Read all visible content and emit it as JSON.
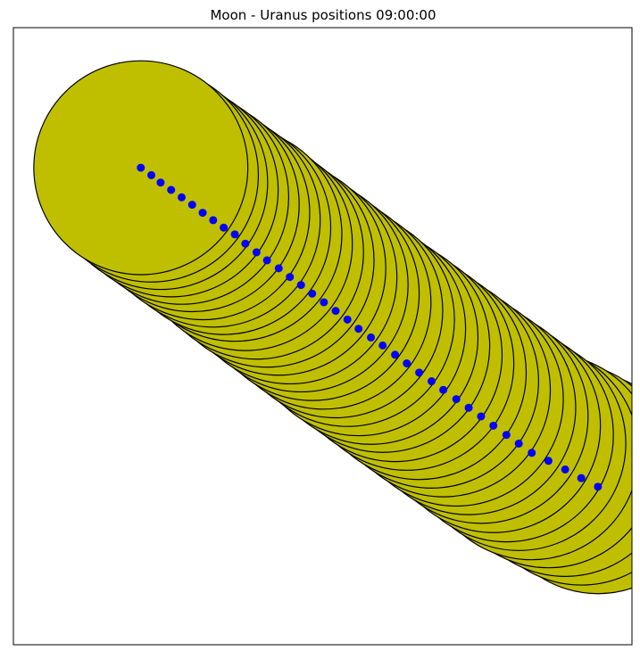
{
  "chart_data": {
    "type": "scatter",
    "title": "Moon - Uranus positions 09:00:00",
    "xlabel": "",
    "ylabel": "",
    "xlim": [
      0,
      100
    ],
    "ylim": [
      0,
      100
    ],
    "grid": false,
    "axes_ticks": false,
    "moon_radius": 17.3,
    "moon_color": "#bfbf00",
    "moon_edge_color": "#000000",
    "point_color": "#0000ff",
    "x": [
      20.6,
      22.3,
      23.8,
      25.5,
      27.2,
      28.9,
      30.6,
      32.3,
      34.0,
      35.8,
      37.5,
      39.3,
      41.0,
      42.9,
      44.7,
      46.5,
      48.3,
      50.2,
      52.1,
      54.0,
      55.8,
      57.8,
      59.7,
      61.7,
      63.6,
      65.6,
      67.6,
      69.5,
      71.6,
      73.6,
      75.6,
      77.6,
      79.7,
      81.7,
      83.8,
      86.5,
      89.2,
      91.8,
      94.5
    ],
    "y": [
      77.3,
      76.1,
      74.9,
      73.7,
      72.5,
      71.3,
      70.0,
      68.8,
      67.6,
      66.5,
      65.0,
      63.6,
      62.3,
      61.0,
      59.6,
      58.3,
      56.9,
      55.5,
      54.1,
      52.7,
      51.2,
      49.8,
      48.5,
      47.0,
      45.6,
      44.1,
      42.7,
      41.3,
      39.8,
      38.4,
      37.0,
      35.5,
      34.0,
      32.6,
      31.1,
      29.8,
      28.4,
      27.0,
      25.6
    ]
  }
}
